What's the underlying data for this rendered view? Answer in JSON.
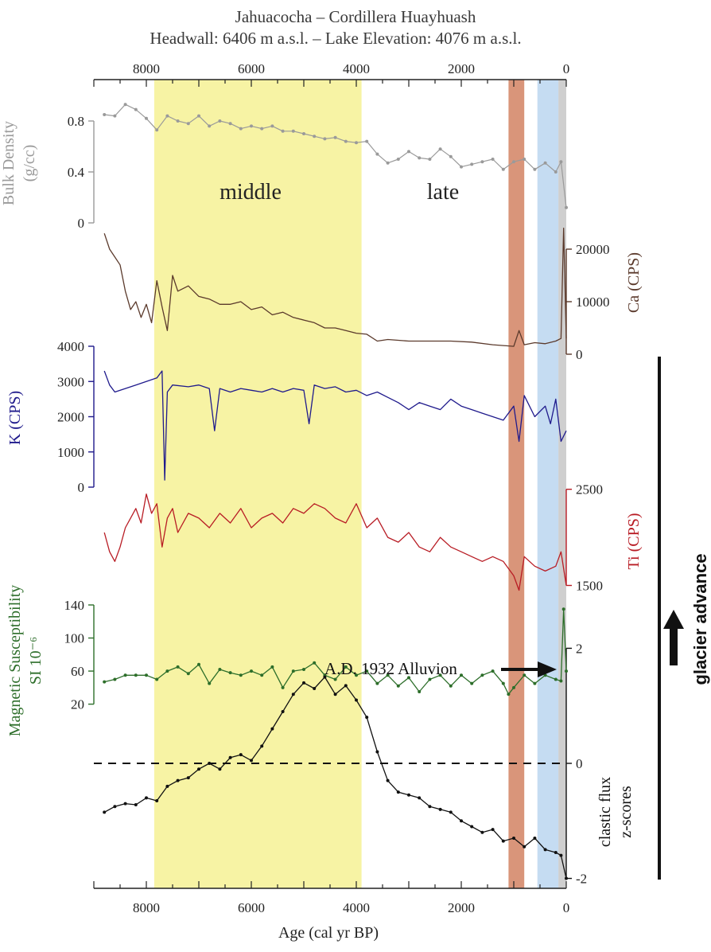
{
  "title_line1": "Jahuacocha – Cordillera Huayhuash",
  "title_line2": "Headwall: 6406 m a.s.l. – Lake Elevation: 4076 m a.s.l.",
  "colors": {
    "bulk": "#9a9a9a",
    "ca": "#5b3a2c",
    "k": "#1f1a8c",
    "ti": "#b81c24",
    "ms": "#2d6e2a",
    "flux": "#111111",
    "yellow_band": "#f7f3a4",
    "orange_band": "#d9957a",
    "blue_band": "#c5dcf2",
    "grey_band": "#cfcfcf"
  },
  "chart_data": {
    "type": "line",
    "xlabel": "Age (cal yr BP)",
    "xlim": [
      9000,
      0
    ],
    "x_ticks": [
      "8000",
      "6000",
      "4000",
      "2000",
      "0"
    ],
    "bands": [
      {
        "name": "middle",
        "from": 7850,
        "to": 3900,
        "color": "yellow",
        "label": "middle"
      },
      {
        "name": "late",
        "label": "late"
      },
      {
        "name": "orange",
        "from": 1100,
        "to": 800,
        "color": "orange"
      },
      {
        "name": "blue",
        "from": 550,
        "to": 150,
        "color": "blue"
      },
      {
        "name": "grey",
        "from": 150,
        "to": 0,
        "color": "grey"
      }
    ],
    "annotations": [
      "A.D. 1932 Alluvion",
      "glacier advance"
    ],
    "series": [
      {
        "name": "Bulk Density",
        "ylabel": [
          "Bulk Density",
          "(g/cc)"
        ],
        "ylim": [
          0,
          1.0
        ],
        "y_ticks": [
          "0",
          "0.4",
          "0.8"
        ],
        "x": [
          8800,
          8600,
          8400,
          8200,
          8000,
          7800,
          7600,
          7400,
          7200,
          7000,
          6800,
          6600,
          6400,
          6200,
          6000,
          5800,
          5600,
          5400,
          5200,
          5000,
          4800,
          4600,
          4400,
          4200,
          4000,
          3800,
          3600,
          3400,
          3200,
          3000,
          2800,
          2600,
          2400,
          2200,
          2000,
          1800,
          1600,
          1400,
          1200,
          1000,
          800,
          600,
          400,
          200,
          100,
          0
        ],
        "values": [
          0.85,
          0.84,
          0.93,
          0.89,
          0.82,
          0.73,
          0.84,
          0.8,
          0.78,
          0.84,
          0.76,
          0.8,
          0.78,
          0.74,
          0.76,
          0.74,
          0.76,
          0.72,
          0.72,
          0.7,
          0.68,
          0.66,
          0.67,
          0.64,
          0.63,
          0.64,
          0.54,
          0.47,
          0.5,
          0.56,
          0.51,
          0.5,
          0.58,
          0.52,
          0.44,
          0.46,
          0.48,
          0.5,
          0.42,
          0.48,
          0.5,
          0.42,
          0.47,
          0.4,
          0.48,
          0.12
        ]
      },
      {
        "name": "Ca",
        "ylabel": [
          "Ca (CPS)"
        ],
        "ylim": [
          0,
          25000
        ],
        "y_ticks": [
          "0",
          "10000",
          "20000"
        ],
        "x": [
          8800,
          8700,
          8600,
          8500,
          8400,
          8300,
          8200,
          8100,
          8000,
          7900,
          7800,
          7700,
          7600,
          7500,
          7400,
          7200,
          7000,
          6800,
          6600,
          6400,
          6200,
          6000,
          5800,
          5600,
          5400,
          5200,
          5000,
          4800,
          4600,
          4400,
          4200,
          4000,
          3800,
          3600,
          3400,
          3000,
          2600,
          2200,
          1800,
          1400,
          1000,
          900,
          800,
          600,
          400,
          200,
          100,
          50,
          0
        ],
        "values": [
          23000,
          20000,
          18500,
          17000,
          12000,
          8500,
          10000,
          7000,
          9500,
          6000,
          14000,
          9000,
          4500,
          15000,
          12000,
          13000,
          11000,
          10500,
          9500,
          9500,
          10000,
          8500,
          9000,
          7500,
          8000,
          7000,
          6500,
          6000,
          5000,
          5000,
          4500,
          4000,
          3800,
          2500,
          2800,
          2500,
          2500,
          2500,
          2300,
          1800,
          1500,
          4500,
          1800,
          2200,
          2000,
          2500,
          3000,
          24000,
          3000
        ]
      },
      {
        "name": "K",
        "ylabel": [
          "K (CPS)"
        ],
        "ylim": [
          0,
          4000
        ],
        "y_ticks": [
          "0",
          "1000",
          "2000",
          "3000",
          "4000"
        ],
        "x": [
          8800,
          8700,
          8600,
          8400,
          8200,
          8000,
          7800,
          7700,
          7650,
          7600,
          7500,
          7200,
          7000,
          6800,
          6700,
          6600,
          6400,
          6200,
          6000,
          5800,
          5600,
          5400,
          5200,
          5000,
          4900,
          4800,
          4600,
          4400,
          4200,
          4000,
          3800,
          3600,
          3400,
          3200,
          3000,
          2800,
          2600,
          2400,
          2200,
          2000,
          1800,
          1600,
          1400,
          1200,
          1000,
          900,
          800,
          600,
          400,
          300,
          200,
          100,
          0
        ],
        "values": [
          3300,
          2900,
          2700,
          2800,
          2900,
          3000,
          3100,
          3300,
          200,
          2700,
          2900,
          2850,
          2900,
          2800,
          1600,
          2800,
          2700,
          2800,
          2750,
          2700,
          2800,
          2700,
          2800,
          2750,
          1800,
          2900,
          2800,
          2850,
          2700,
          2750,
          2600,
          2700,
          2550,
          2400,
          2200,
          2400,
          2300,
          2200,
          2500,
          2300,
          2200,
          2100,
          2000,
          1900,
          2300,
          1300,
          2600,
          2000,
          2300,
          1800,
          2500,
          1300,
          1600
        ]
      },
      {
        "name": "Ti",
        "ylabel": [
          "Ti (CPS)"
        ],
        "ylim": [
          1380,
          2580
        ],
        "y_ticks": [
          "1500",
          "2500"
        ],
        "x": [
          8800,
          8700,
          8600,
          8500,
          8400,
          8300,
          8200,
          8100,
          8000,
          7900,
          7800,
          7700,
          7600,
          7500,
          7400,
          7200,
          7000,
          6800,
          6600,
          6400,
          6200,
          6000,
          5800,
          5600,
          5400,
          5200,
          5000,
          4800,
          4600,
          4400,
          4200,
          4000,
          3800,
          3600,
          3400,
          3200,
          3000,
          2800,
          2600,
          2400,
          2200,
          2000,
          1800,
          1600,
          1400,
          1200,
          1000,
          900,
          800,
          600,
          400,
          200,
          100,
          0
        ],
        "values": [
          2050,
          1850,
          1750,
          1900,
          2100,
          2200,
          2300,
          2150,
          2450,
          2250,
          2350,
          1900,
          2200,
          2300,
          2050,
          2250,
          2200,
          2100,
          2250,
          2150,
          2300,
          2100,
          2200,
          2250,
          2150,
          2300,
          2250,
          2350,
          2300,
          2200,
          2150,
          2350,
          2100,
          2200,
          2000,
          1950,
          2050,
          1900,
          1850,
          2000,
          1900,
          1850,
          1800,
          1750,
          1800,
          1750,
          1600,
          1450,
          1800,
          1700,
          1650,
          1700,
          1850,
          1500
        ]
      },
      {
        "name": "Magnetic Susceptibility",
        "ylabel": [
          "Magnetic Susceptibility",
          "SI 10⁻⁶"
        ],
        "ylim": [
          10,
          140
        ],
        "y_ticks": [
          "20",
          "60",
          "100",
          "140"
        ],
        "x": [
          8800,
          8600,
          8400,
          8200,
          8000,
          7800,
          7600,
          7400,
          7200,
          7000,
          6800,
          6600,
          6400,
          6200,
          6000,
          5800,
          5600,
          5400,
          5200,
          5000,
          4800,
          4600,
          4400,
          4200,
          4000,
          3800,
          3600,
          3400,
          3200,
          3000,
          2800,
          2600,
          2400,
          2200,
          2000,
          1800,
          1600,
          1400,
          1200,
          1100,
          1000,
          800,
          600,
          400,
          200,
          100,
          50,
          0
        ],
        "values": [
          47,
          50,
          55,
          55,
          55,
          50,
          60,
          65,
          57,
          68,
          45,
          62,
          58,
          55,
          60,
          55,
          65,
          40,
          60,
          62,
          70,
          55,
          50,
          65,
          55,
          60,
          45,
          55,
          42,
          52,
          35,
          50,
          55,
          42,
          55,
          45,
          55,
          60,
          45,
          32,
          40,
          55,
          45,
          55,
          50,
          48,
          135,
          60
        ]
      },
      {
        "name": "clastic flux z-scores",
        "ylabel": [
          "clastic flux",
          "z-scores"
        ],
        "ylim": [
          -2.2,
          2.2
        ],
        "y_ticks": [
          "-2",
          "0",
          "2"
        ],
        "x": [
          8800,
          8600,
          8400,
          8200,
          8000,
          7800,
          7600,
          7400,
          7200,
          7000,
          6800,
          6600,
          6400,
          6200,
          6000,
          5800,
          5600,
          5400,
          5200,
          5000,
          4800,
          4600,
          4400,
          4200,
          4000,
          3800,
          3600,
          3400,
          3200,
          3000,
          2800,
          2600,
          2400,
          2200,
          2000,
          1800,
          1600,
          1400,
          1200,
          1000,
          800,
          600,
          400,
          200,
          100,
          0
        ],
        "values": [
          -0.85,
          -0.75,
          -0.7,
          -0.72,
          -0.6,
          -0.65,
          -0.4,
          -0.3,
          -0.25,
          -0.1,
          0.0,
          -0.1,
          0.1,
          0.15,
          0.05,
          0.3,
          0.6,
          0.9,
          1.2,
          1.4,
          1.3,
          1.5,
          1.2,
          1.35,
          1.1,
          0.8,
          0.2,
          -0.3,
          -0.5,
          -0.55,
          -0.6,
          -0.75,
          -0.8,
          -0.85,
          -1.0,
          -1.1,
          -1.2,
          -1.15,
          -1.35,
          -1.3,
          -1.45,
          -1.3,
          -1.5,
          -1.55,
          -1.6,
          -2.0
        ]
      }
    ]
  }
}
